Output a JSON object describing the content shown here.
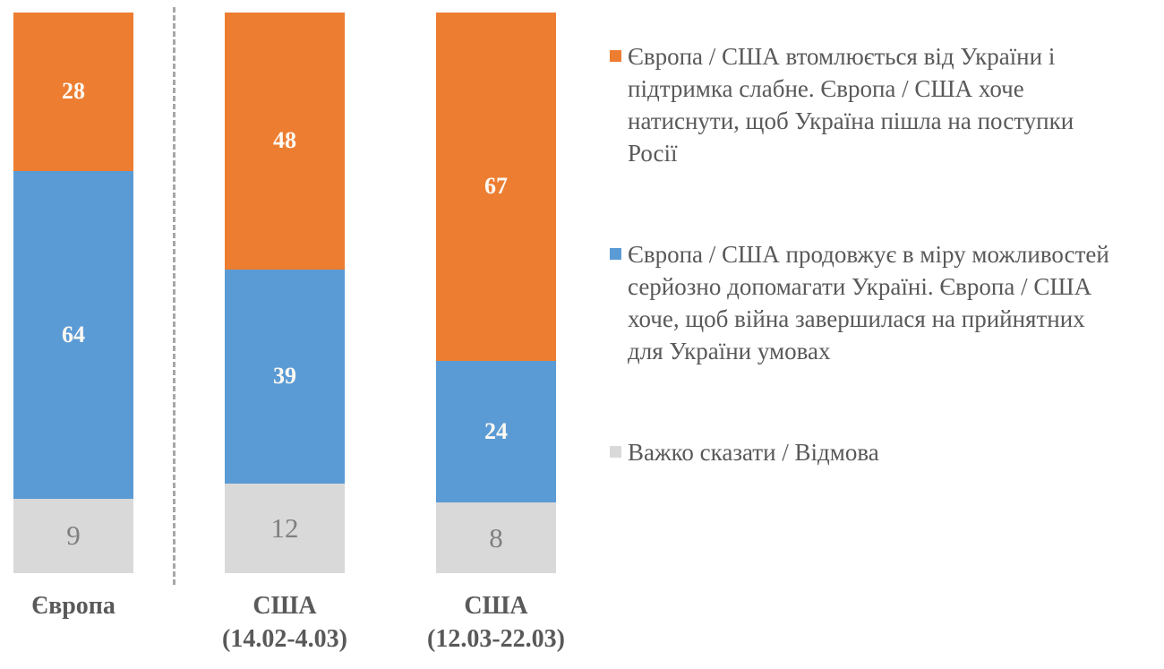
{
  "chart_data": {
    "type": "bar",
    "subtype": "stacked-100-column",
    "title": "",
    "xlabel": "",
    "ylabel": "",
    "axis_range": [
      0,
      100
    ],
    "grid": false,
    "legend_position": "right",
    "categories": [
      "Європа",
      "США\n(14.02-4.03)",
      "США\n(12.03-22.03)"
    ],
    "series": [
      {
        "name": "Європа / США втомлюється від України і\nпідтримка слабне. Європа / США хоче\nнатиснути, щоб Україна пішла на поступки\nРосії",
        "color": "#ED7D31",
        "values": [
          28,
          48,
          67
        ]
      },
      {
        "name": "Європа / США продовжує в міру можливостей\nсерйозно допомагати Україні. Європа / США\nхоче, щоб війна завершилася на прийнятних\nдля України умовах",
        "color": "#5B9BD5",
        "values": [
          64,
          39,
          24
        ]
      },
      {
        "name": "Важко сказати / Відмова",
        "color": "#D9D9D9",
        "values": [
          9,
          12,
          8
        ]
      }
    ],
    "colors": {
      "value_label_on_fill": "#FDF9F3",
      "value_label_on_gray": "#7F7F7F",
      "axis_label": "#595959",
      "legend_text": "#595959",
      "divider_line": "#A6A6A6"
    }
  }
}
